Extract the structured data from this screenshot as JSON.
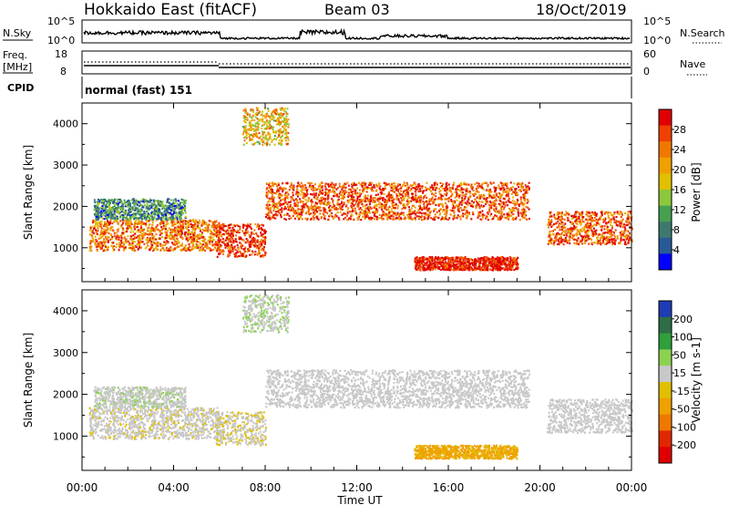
{
  "header": {
    "station": "Hokkaido East (fitACF)",
    "beam": "Beam 03",
    "date": "18/Oct/2019"
  },
  "top_panels": {
    "nsky_label": "N.Sky",
    "nsky_ticks": [
      "10^5",
      "10^0"
    ],
    "nsearch_label": "N.Search",
    "nsearch_ticks": [
      "10^5",
      "10^0"
    ],
    "freq_label_1": "Freq.",
    "freq_label_2": "[MHz]",
    "freq_ticks": [
      "18",
      "8"
    ],
    "nave_label": "Nave",
    "nave_ticks": [
      "60",
      "0"
    ],
    "cpid_label": "CPID",
    "cpid_text": "normal (fast) 151"
  },
  "power_panel": {
    "ylabel": "Slant Range [km]",
    "yticks": [
      "4000",
      "3000",
      "2000",
      "1000"
    ],
    "colorbar_label": "Power [dB]",
    "colorbar_ticks": [
      "28",
      "24",
      "20",
      "16",
      "12",
      "8",
      "4"
    ],
    "colors": [
      "#e00000",
      "#f04000",
      "#f07800",
      "#f0a000",
      "#e0c000",
      "#8cc83c",
      "#46a050",
      "#3c7a6e",
      "#285a96",
      "#0000ff"
    ]
  },
  "velocity_panel": {
    "ylabel": "Slant Range [km]",
    "yticks": [
      "4000",
      "3000",
      "2000",
      "1000"
    ],
    "colorbar_label": "Velocity [m s-1]",
    "colorbar_ticks": [
      "200",
      "100",
      "50",
      "15",
      "-15",
      "-50",
      "-100",
      "-200"
    ],
    "colors": [
      "#1e3cb4",
      "#2e6e46",
      "#2ea03c",
      "#8cd250",
      "#c8c8c8",
      "#e0c000",
      "#f0a000",
      "#f07800",
      "#e02800",
      "#e00000"
    ]
  },
  "xaxis": {
    "ticks": [
      "00:00",
      "04:00",
      "08:00",
      "12:00",
      "16:00",
      "20:00",
      "00:00"
    ],
    "label": "Time UT"
  },
  "chart_data": {
    "type": "heatmap",
    "x_range_hours": [
      0,
      24
    ],
    "y_range_km": [
      180,
      4500
    ],
    "title": "Hokkaido East (fitACF)",
    "xlabel": "Time UT",
    "ylabel": "Slant Range [km]",
    "echo_bands": [
      {
        "t0": 0.3,
        "t1": 6.0,
        "r0": 950,
        "r1": 1700,
        "power_db": 24,
        "velocity": -5
      },
      {
        "t0": 0.5,
        "t1": 4.5,
        "r0": 1700,
        "r1": 2200,
        "power_db": 10,
        "velocity": 5
      },
      {
        "t0": 5.8,
        "t1": 8.0,
        "r0": 800,
        "r1": 1600,
        "power_db": 28,
        "velocity": -10
      },
      {
        "t0": 8.0,
        "t1": 19.5,
        "r0": 1700,
        "r1": 2600,
        "power_db": 26,
        "velocity": 0
      },
      {
        "t0": 14.5,
        "t1": 19.0,
        "r0": 480,
        "r1": 800,
        "power_db": 30,
        "velocity": -40
      },
      {
        "t0": 20.3,
        "t1": 24.0,
        "r0": 1100,
        "r1": 1900,
        "power_db": 26,
        "velocity": 0
      },
      {
        "t0": 7.0,
        "t1": 9.0,
        "r0": 3500,
        "r1": 4400,
        "power_db": 20,
        "velocity": 10
      }
    ]
  }
}
